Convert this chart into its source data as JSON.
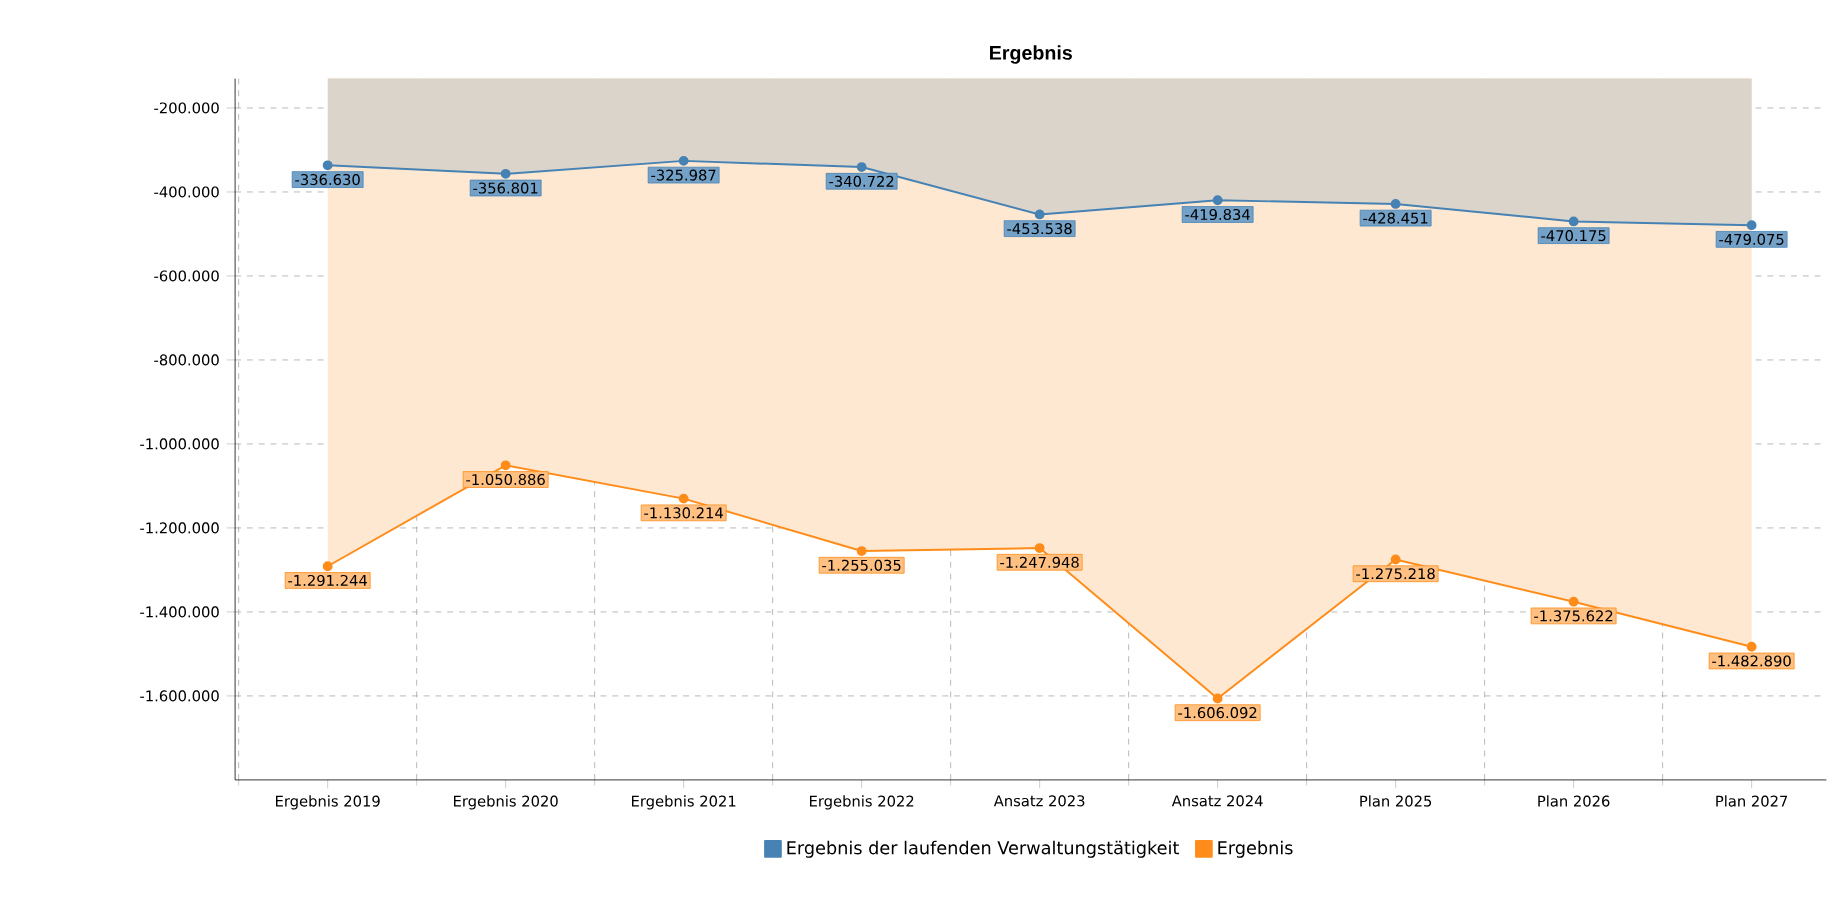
{
  "chart_data": {
    "type": "area",
    "title": "Ergebnis",
    "categories": [
      "Ergebnis 2019",
      "Ergebnis 2020",
      "Ergebnis 2021",
      "Ergebnis 2022",
      "Ansatz 2023",
      "Ansatz 2024",
      "Plan 2025",
      "Plan 2026",
      "Plan 2027"
    ],
    "series": [
      {
        "name": "Ergebnis der laufenden Verwaltungstätigkeit",
        "color": "#4682b4",
        "values": [
          -336630,
          -356801,
          -325987,
          -340722,
          -453538,
          -419834,
          -428451,
          -470175,
          -479075
        ],
        "value_labels": [
          "-336.630",
          "-356.801",
          "-325.987",
          "-340.722",
          "-453.538",
          "-419.834",
          "-428.451",
          "-470.175",
          "-479.075"
        ]
      },
      {
        "name": "Ergebnis",
        "color": "#ff8c1a",
        "values": [
          -1291244,
          -1050886,
          -1130214,
          -1255035,
          -1247948,
          -1606092,
          -1275218,
          -1375622,
          -1482890
        ],
        "value_labels": [
          "-1.291.244",
          "-1.050.886",
          "-1.130.214",
          "-1.255.035",
          "-1.247.948",
          "-1.606.092",
          "-1.275.218",
          "-1.375.622",
          "-1.482.890"
        ]
      }
    ],
    "ylim": [
      -1800000,
      -130000
    ],
    "yticks": [
      {
        "value": -200000,
        "label": "-200.000"
      },
      {
        "value": -400000,
        "label": "-400.000"
      },
      {
        "value": -600000,
        "label": "-600.000"
      },
      {
        "value": -800000,
        "label": "-800.000"
      },
      {
        "value": -1000000,
        "label": "-1.000.000"
      },
      {
        "value": -1200000,
        "label": "-1.200.000"
      },
      {
        "value": -1400000,
        "label": "-1.400.000"
      },
      {
        "value": -1600000,
        "label": "-1.600.000"
      }
    ],
    "grid": true,
    "legend": "bottom",
    "marker": "circle",
    "line_style": "solid"
  }
}
